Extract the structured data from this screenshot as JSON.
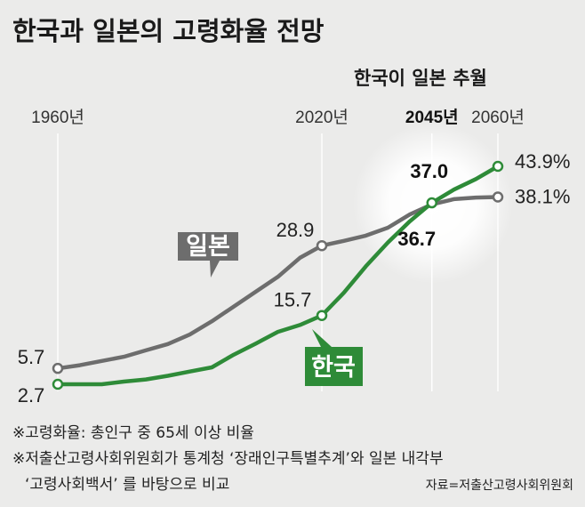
{
  "title": "한국과 일본의 고령화율 전망",
  "chart_data": {
    "type": "line",
    "subtitle": "한국이 일본 추월",
    "unit": "%",
    "x_range": [
      1960,
      2060
    ],
    "y_range": [
      0,
      50
    ],
    "year_labels": [
      {
        "year": 1960,
        "text": "1960년",
        "bold": false
      },
      {
        "year": 2020,
        "text": "2020년",
        "bold": false
      },
      {
        "year": 2045,
        "text": "2045년",
        "bold": true
      },
      {
        "year": 2060,
        "text": "2060년",
        "bold": false
      }
    ],
    "series": [
      {
        "name": "일본",
        "color": "#6d6d6d",
        "points": [
          [
            1960,
            5.7
          ],
          [
            1965,
            6.3
          ],
          [
            1970,
            7.1
          ],
          [
            1975,
            7.9
          ],
          [
            1980,
            9.1
          ],
          [
            1985,
            10.3
          ],
          [
            1990,
            12.1
          ],
          [
            1995,
            14.6
          ],
          [
            2000,
            17.4
          ],
          [
            2005,
            20.2
          ],
          [
            2010,
            23.0
          ],
          [
            2015,
            26.6
          ],
          [
            2020,
            28.9
          ],
          [
            2025,
            29.8
          ],
          [
            2030,
            30.8
          ],
          [
            2035,
            32.3
          ],
          [
            2040,
            34.8
          ],
          [
            2045,
            36.7
          ],
          [
            2050,
            37.7
          ],
          [
            2055,
            38.0
          ],
          [
            2060,
            38.1
          ]
        ],
        "markers": [
          1960,
          2020,
          2060
        ],
        "value_labels": [
          {
            "year": 1960,
            "text": "5.7",
            "bold": false
          },
          {
            "year": 2020,
            "text": "28.9",
            "bold": false
          },
          {
            "year": 2045,
            "text": "36.7",
            "bold": true
          },
          {
            "year": 2060,
            "text": "38.1%",
            "bold": false
          }
        ]
      },
      {
        "name": "한국",
        "color": "#2e8b38",
        "points": [
          [
            1960,
            2.7
          ],
          [
            1965,
            2.7
          ],
          [
            1970,
            2.7
          ],
          [
            1975,
            3.2
          ],
          [
            1980,
            3.6
          ],
          [
            1985,
            4.3
          ],
          [
            1990,
            5.1
          ],
          [
            1995,
            5.9
          ],
          [
            2000,
            8.3
          ],
          [
            2005,
            10.4
          ],
          [
            2010,
            12.6
          ],
          [
            2015,
            13.9
          ],
          [
            2020,
            15.7
          ],
          [
            2025,
            20.0
          ],
          [
            2030,
            25.0
          ],
          [
            2035,
            29.5
          ],
          [
            2040,
            33.5
          ],
          [
            2045,
            37.0
          ],
          [
            2050,
            39.5
          ],
          [
            2055,
            41.5
          ],
          [
            2060,
            43.9
          ]
        ],
        "markers": [
          1960,
          2020,
          2045,
          2060
        ],
        "value_labels": [
          {
            "year": 1960,
            "text": "2.7",
            "bold": false
          },
          {
            "year": 2020,
            "text": "15.7",
            "bold": false
          },
          {
            "year": 2045,
            "text": "37.0",
            "bold": true
          },
          {
            "year": 2060,
            "text": "43.9%",
            "bold": false
          }
        ]
      }
    ]
  },
  "notes": [
    "※고령화율: 총인구 중 65세 이상 비율",
    "※저출산고령사회위원회가 통계청 ‘장래인구특별추계’와 일본 내각부",
    "‘고령사회백서’ 를 바탕으로 비교"
  ],
  "source": "자료=저출산고령사회위원회"
}
